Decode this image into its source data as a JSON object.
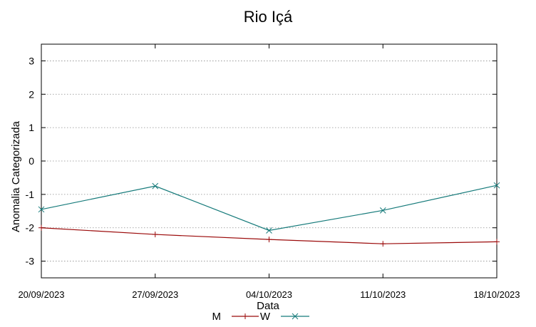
{
  "chart_data": {
    "type": "line",
    "title": "Rio Içá",
    "xlabel": "Data",
    "ylabel": "Anomalia Categorizada",
    "categories": [
      "20/09/2023",
      "27/09/2023",
      "04/10/2023",
      "11/10/2023",
      "18/10/2023"
    ],
    "ylim": [
      -3.5,
      3.5
    ],
    "yticks": [
      3,
      2,
      1,
      0,
      -1,
      -2,
      -3
    ],
    "grid": true,
    "series": [
      {
        "name": "M",
        "color": "#9b0a0a",
        "marker": "plus",
        "values": [
          -2.0,
          -2.2,
          -2.35,
          -2.48,
          -2.42
        ]
      },
      {
        "name": "W",
        "color": "#157a7a",
        "marker": "x",
        "values": [
          -1.45,
          -0.75,
          -2.08,
          -1.48,
          -0.73
        ]
      }
    ],
    "legend_position": "bottom"
  }
}
